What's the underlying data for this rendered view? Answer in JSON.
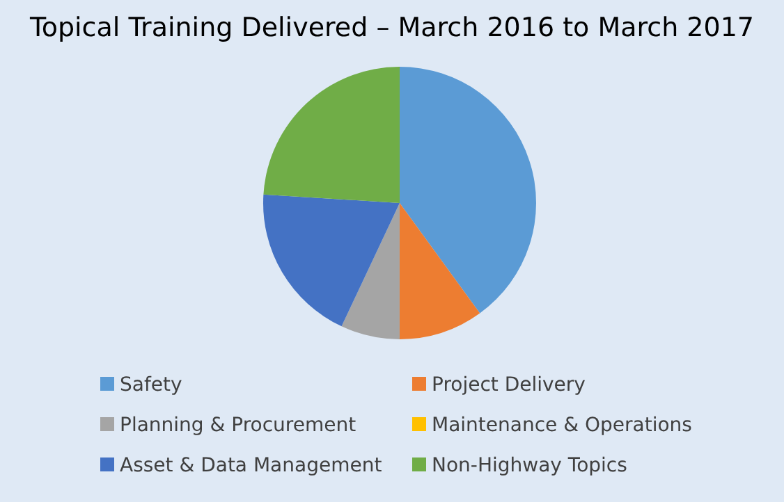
{
  "chart_data": {
    "type": "pie",
    "title": "Topical Training Delivered – March 2016 to March 2017",
    "categories": [
      "Safety",
      "Project Delivery",
      "Planning & Procurement",
      "Maintenance & Operations",
      "Asset & Data Management",
      "Non-Highway Topics"
    ],
    "values": [
      40,
      10,
      7,
      0,
      19,
      24
    ],
    "colors": [
      "#5b9bd5",
      "#ed7d31",
      "#a5a5a5",
      "#ffc000",
      "#4472c4",
      "#70ad47"
    ],
    "legend": "bottom"
  }
}
